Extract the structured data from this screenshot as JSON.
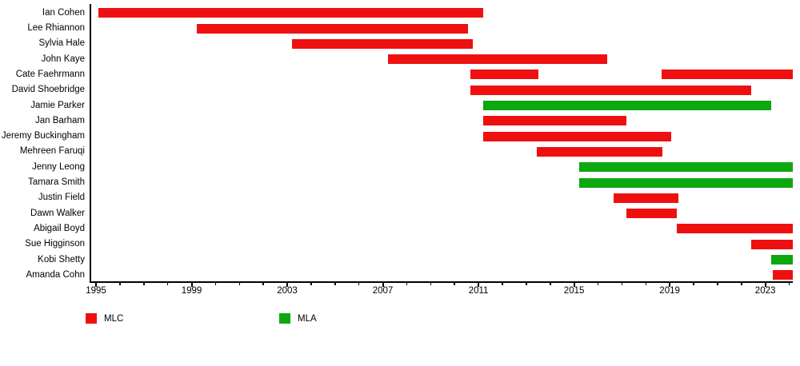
{
  "chart_data": {
    "type": "bar",
    "subtype": "horizontal-interval-timeline",
    "title": "",
    "xlabel": "",
    "ylabel": "",
    "grid": false,
    "x_axis": {
      "min": 1994.8,
      "max": 2024.15,
      "major_ticks": [
        1995,
        1999,
        2003,
        2007,
        2011,
        2015,
        2019,
        2023
      ],
      "major_tick_labels": [
        "1995",
        "1999",
        "2003",
        "2007",
        "2011",
        "2015",
        "2019",
        "2023"
      ],
      "minor_tick_step": 1,
      "minor_tick_range": [
        1995,
        2024
      ]
    },
    "colors": {
      "MLC": "#ee1010",
      "MLA": "#0ea70e"
    },
    "legend": [
      {
        "label": "MLC",
        "color": "#ee1010"
      },
      {
        "label": "MLA",
        "color": "#0ea70e"
      }
    ],
    "legend_position": "bottom",
    "members": [
      {
        "name": "Ian Cohen",
        "role": "MLC",
        "terms": [
          [
            1995.1,
            2011.2
          ]
        ]
      },
      {
        "name": "Lee Rhiannon",
        "role": "MLC",
        "terms": [
          [
            1999.2,
            2010.55
          ]
        ]
      },
      {
        "name": "Sylvia Hale",
        "role": "MLC",
        "terms": [
          [
            2003.2,
            2010.75
          ]
        ]
      },
      {
        "name": "John Kaye",
        "role": "MLC",
        "terms": [
          [
            2007.2,
            2016.4
          ]
        ]
      },
      {
        "name": "Cate Faehrmann",
        "role": "MLC",
        "terms": [
          [
            2010.65,
            2013.5
          ],
          [
            2018.65,
            2024.15
          ]
        ]
      },
      {
        "name": "David Shoebridge",
        "role": "MLC",
        "terms": [
          [
            2010.65,
            2022.4
          ]
        ]
      },
      {
        "name": "Jamie Parker",
        "role": "MLA",
        "terms": [
          [
            2011.2,
            2023.25
          ]
        ]
      },
      {
        "name": "Jan Barham",
        "role": "MLC",
        "terms": [
          [
            2011.2,
            2017.2
          ]
        ]
      },
      {
        "name": "Jeremy Buckingham",
        "role": "MLC",
        "terms": [
          [
            2011.2,
            2019.05
          ]
        ]
      },
      {
        "name": "Mehreen Faruqi",
        "role": "MLC",
        "terms": [
          [
            2013.45,
            2018.7
          ]
        ]
      },
      {
        "name": "Jenny Leong",
        "role": "MLA",
        "terms": [
          [
            2015.2,
            2024.15
          ]
        ]
      },
      {
        "name": "Tamara Smith",
        "role": "MLA",
        "terms": [
          [
            2015.2,
            2024.15
          ]
        ]
      },
      {
        "name": "Justin Field",
        "role": "MLC",
        "terms": [
          [
            2016.65,
            2019.35
          ]
        ]
      },
      {
        "name": "Dawn Walker",
        "role": "MLC",
        "terms": [
          [
            2017.2,
            2019.3
          ]
        ]
      },
      {
        "name": "Abigail Boyd",
        "role": "MLC",
        "terms": [
          [
            2019.3,
            2024.15
          ]
        ]
      },
      {
        "name": "Sue Higginson",
        "role": "MLC",
        "terms": [
          [
            2022.4,
            2024.15
          ]
        ]
      },
      {
        "name": "Kobi Shetty",
        "role": "MLA",
        "terms": [
          [
            2023.25,
            2024.15
          ]
        ]
      },
      {
        "name": "Amanda Cohn",
        "role": "MLC",
        "terms": [
          [
            2023.3,
            2024.15
          ]
        ]
      }
    ]
  }
}
